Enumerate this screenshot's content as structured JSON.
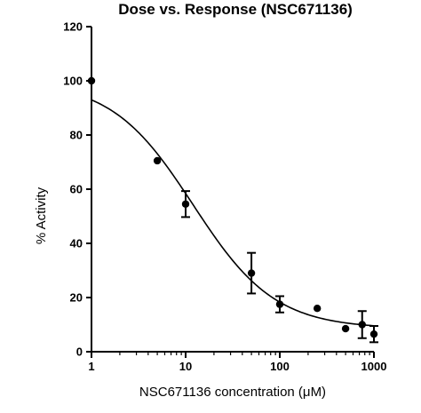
{
  "chart_data": {
    "type": "scatter",
    "title": "Dose vs. Response (NSC671136)",
    "xlabel": "NSC671136 concentration (μM)",
    "ylabel": "% Activity",
    "xscale": "log",
    "xlim": [
      1,
      1000
    ],
    "ylim": [
      0,
      120
    ],
    "x_ticks": [
      1,
      10,
      100,
      1000
    ],
    "x_tick_labels": [
      "1",
      "10",
      "100",
      "1000"
    ],
    "y_ticks": [
      0,
      20,
      40,
      60,
      80,
      100,
      120
    ],
    "y_tick_labels": [
      "0",
      "20",
      "40",
      "60",
      "80",
      "100",
      "120"
    ],
    "grid": false,
    "legend": "none",
    "points": [
      {
        "x": 1,
        "y": 100,
        "err": 0
      },
      {
        "x": 5,
        "y": 70.5,
        "err": 0
      },
      {
        "x": 10,
        "y": 54.5,
        "err": 4.8
      },
      {
        "x": 50,
        "y": 29,
        "err": 7.5
      },
      {
        "x": 100,
        "y": 17.5,
        "err": 3
      },
      {
        "x": 250,
        "y": 16,
        "err": 0
      },
      {
        "x": 500,
        "y": 8.5,
        "err": 0
      },
      {
        "x": 750,
        "y": 10,
        "err": 5
      },
      {
        "x": 1000,
        "y": 6.5,
        "err": 3
      }
    ],
    "fit_curve": {
      "model": "four-parameter logistic",
      "top": 100,
      "bottom": 8.5,
      "ec50": 12,
      "hill": 1
    },
    "colors": {
      "marks": "#000000"
    }
  }
}
